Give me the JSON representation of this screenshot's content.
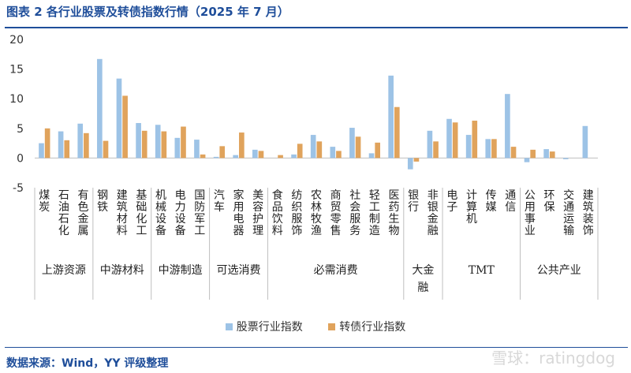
{
  "header": {
    "title": "图表 2 各行业股票及转债指数行情（2025 年 7 月）"
  },
  "footer": {
    "source": "数据来源：Wind，YY 评级整理",
    "watermark": "雪球：ratingdog"
  },
  "colors": {
    "series1": "#9dc3e6",
    "series2": "#e0a35c",
    "title": "#1f4e9a",
    "axis": "#bfbfbf"
  },
  "chart_data": {
    "type": "bar",
    "title": "",
    "xlabel": "",
    "ylabel": "",
    "ylim": [
      -5,
      20
    ],
    "yticks": [
      -5,
      0,
      5,
      10,
      15,
      20
    ],
    "grid": false,
    "legend_position": "bottom",
    "categories": [
      "煤炭",
      "石油石化",
      "有色金属",
      "钢铁",
      "建筑材料",
      "基础化工",
      "机械设备",
      "电力设备",
      "国防军工",
      "汽车",
      "家用电器",
      "美容护理",
      "食品饮料",
      "纺织服饰",
      "农林牧渔",
      "商贸零售",
      "社会服务",
      "轻工制造",
      "医药生物",
      "银行",
      "非银金融",
      "电子",
      "计算机",
      "传媒",
      "通信",
      "公用事业",
      "环保",
      "交通运输",
      "建筑装饰"
    ],
    "groups": [
      {
        "name": "上游资源",
        "count": 3
      },
      {
        "name": "中游材料",
        "count": 3
      },
      {
        "name": "中游制造",
        "count": 3
      },
      {
        "name": "可选消费",
        "count": 3
      },
      {
        "name": "必需消费",
        "count": 7
      },
      {
        "name": "大金融",
        "count": 2
      },
      {
        "name": "TMT",
        "count": 4
      },
      {
        "name": "公共产业",
        "count": 4
      }
    ],
    "series": [
      {
        "name": "股票行业指数",
        "values": [
          2.5,
          4.5,
          5.8,
          16.7,
          13.4,
          5.9,
          5.6,
          3.4,
          3.1,
          0.2,
          0.5,
          1.4,
          0.0,
          0.6,
          3.9,
          1.9,
          5.1,
          0.8,
          13.9,
          -1.9,
          4.6,
          6.6,
          3.9,
          3.2,
          10.8,
          -0.7,
          1.5,
          -0.2,
          5.4
        ]
      },
      {
        "name": "转债行业指数",
        "values": [
          5.0,
          3.0,
          4.2,
          2.9,
          10.5,
          4.6,
          4.5,
          5.3,
          0.6,
          2.0,
          4.3,
          1.2,
          0.5,
          2.4,
          2.8,
          1.2,
          3.6,
          2.6,
          8.6,
          -0.6,
          2.8,
          6.0,
          6.3,
          3.2,
          1.9,
          1.4,
          1.1,
          0.0,
          0.0
        ]
      }
    ]
  }
}
